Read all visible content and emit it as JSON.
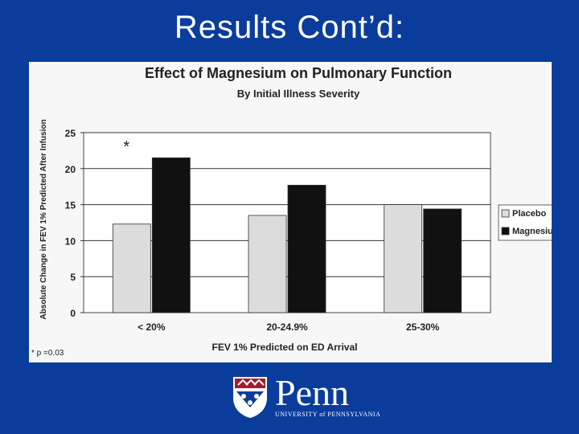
{
  "slide": {
    "title": "Results Cont’d:"
  },
  "logo": {
    "word": "Penn",
    "subtitle": "UNIVERSITY of PENNSYLVANIA"
  },
  "chart_data": {
    "type": "bar",
    "title": "Effect of Magnesium on Pulmonary Function",
    "subtitle": "By Initial Illness Severity",
    "xlabel": "FEV 1% Predicted on ED Arrival",
    "ylabel": "Absolute Change in FEV 1% Predicted After Infusion",
    "ylim": [
      0,
      25
    ],
    "yticks": [
      0,
      5,
      10,
      15,
      20,
      25
    ],
    "categories": [
      "< 20%",
      "20-24.9%",
      "25-30%"
    ],
    "series": [
      {
        "name": "Placebo",
        "values": [
          12.3,
          13.5,
          15.0
        ],
        "color": "#dcdcdc"
      },
      {
        "name": "Magnesium",
        "values": [
          21.5,
          17.7,
          14.4
        ],
        "color": "#111111"
      }
    ],
    "annotations": [
      {
        "text": "*",
        "category": "< 20%"
      }
    ],
    "footnote": "* p =0.03",
    "legend": "right",
    "grid": true
  }
}
